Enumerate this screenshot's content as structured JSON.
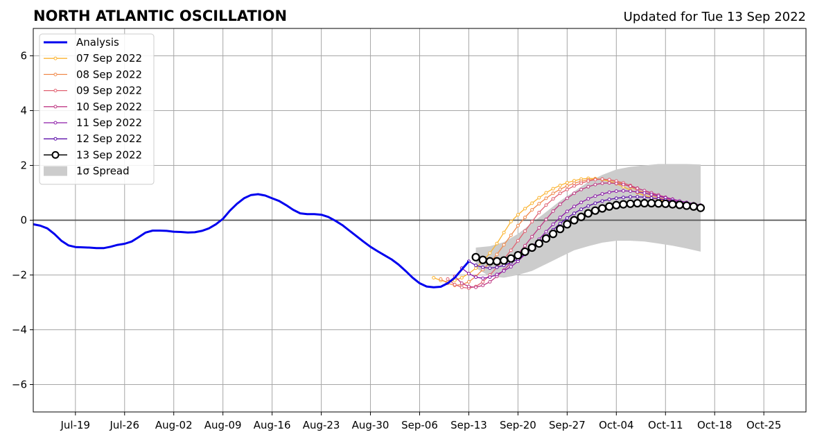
{
  "chart_data": {
    "type": "line",
    "title": "NORTH ATLANTIC OSCILLATION",
    "subtitle": "Updated for Tue 13 Sep 2022",
    "xlabel": "",
    "ylabel": "",
    "xlim": [
      "2022-07-13",
      "2022-10-31"
    ],
    "ylim": [
      -7,
      7
    ],
    "grid": true,
    "legend_position": "top-left",
    "x_ticks": [
      {
        "date": "2022-07-19",
        "label": "Jul-19"
      },
      {
        "date": "2022-07-26",
        "label": "Jul-26"
      },
      {
        "date": "2022-08-02",
        "label": "Aug-02"
      },
      {
        "date": "2022-08-09",
        "label": "Aug-09"
      },
      {
        "date": "2022-08-16",
        "label": "Aug-16"
      },
      {
        "date": "2022-08-23",
        "label": "Aug-23"
      },
      {
        "date": "2022-08-30",
        "label": "Aug-30"
      },
      {
        "date": "2022-09-06",
        "label": "Sep-06"
      },
      {
        "date": "2022-09-13",
        "label": "Sep-13"
      },
      {
        "date": "2022-09-20",
        "label": "Sep-20"
      },
      {
        "date": "2022-09-27",
        "label": "Sep-27"
      },
      {
        "date": "2022-10-04",
        "label": "Oct-04"
      },
      {
        "date": "2022-10-11",
        "label": "Oct-11"
      },
      {
        "date": "2022-10-18",
        "label": "Oct-18"
      },
      {
        "date": "2022-10-25",
        "label": "Oct-25"
      }
    ],
    "y_ticks": [
      {
        "value": 6,
        "label": "6"
      },
      {
        "value": 4,
        "label": "4"
      },
      {
        "value": 2,
        "label": "2"
      },
      {
        "value": 0,
        "label": "0"
      },
      {
        "value": -2,
        "label": "−2"
      },
      {
        "value": -4,
        "label": "−4"
      },
      {
        "value": -6,
        "label": "−6"
      }
    ],
    "spread": {
      "name": "1σ Spread",
      "color": "#cccccc",
      "x": [
        "2022-09-14",
        "2022-09-16",
        "2022-09-18",
        "2022-09-20",
        "2022-09-22",
        "2022-09-24",
        "2022-09-26",
        "2022-09-28",
        "2022-09-30",
        "2022-10-02",
        "2022-10-04",
        "2022-10-06",
        "2022-10-08",
        "2022-10-10",
        "2022-10-12",
        "2022-10-14",
        "2022-10-16"
      ],
      "upper": [
        -1.0,
        -0.95,
        -0.8,
        -0.5,
        -0.1,
        0.3,
        0.7,
        1.05,
        1.4,
        1.65,
        1.85,
        1.95,
        2.0,
        2.05,
        2.05,
        2.05,
        2.03
      ],
      "lower": [
        -1.75,
        -2.05,
        -2.1,
        -2.0,
        -1.85,
        -1.6,
        -1.35,
        -1.1,
        -0.95,
        -0.82,
        -0.75,
        -0.75,
        -0.78,
        -0.85,
        -0.93,
        -1.03,
        -1.15
      ]
    },
    "series": [
      {
        "name": "Analysis",
        "color": "#0000ee",
        "style": "thick",
        "x": [
          "2022-07-13",
          "2022-07-14",
          "2022-07-15",
          "2022-07-16",
          "2022-07-17",
          "2022-07-18",
          "2022-07-19",
          "2022-07-20",
          "2022-07-21",
          "2022-07-22",
          "2022-07-23",
          "2022-07-24",
          "2022-07-25",
          "2022-07-26",
          "2022-07-27",
          "2022-07-28",
          "2022-07-29",
          "2022-07-30",
          "2022-07-31",
          "2022-08-01",
          "2022-08-02",
          "2022-08-03",
          "2022-08-04",
          "2022-08-05",
          "2022-08-06",
          "2022-08-07",
          "2022-08-08",
          "2022-08-09",
          "2022-08-10",
          "2022-08-11",
          "2022-08-12",
          "2022-08-13",
          "2022-08-14",
          "2022-08-15",
          "2022-08-16",
          "2022-08-17",
          "2022-08-18",
          "2022-08-19",
          "2022-08-20",
          "2022-08-21",
          "2022-08-22",
          "2022-08-23",
          "2022-08-24",
          "2022-08-25",
          "2022-08-26",
          "2022-08-27",
          "2022-08-28",
          "2022-08-29",
          "2022-08-30",
          "2022-08-31",
          "2022-09-01",
          "2022-09-02",
          "2022-09-03",
          "2022-09-04",
          "2022-09-05",
          "2022-09-06",
          "2022-09-07",
          "2022-09-08",
          "2022-09-09",
          "2022-09-10",
          "2022-09-11",
          "2022-09-12",
          "2022-09-13"
        ],
        "values": [
          -0.15,
          -0.2,
          -0.3,
          -0.5,
          -0.75,
          -0.92,
          -0.98,
          -0.99,
          -1.0,
          -1.02,
          -1.02,
          -0.97,
          -0.9,
          -0.86,
          -0.78,
          -0.62,
          -0.45,
          -0.38,
          -0.38,
          -0.39,
          -0.42,
          -0.43,
          -0.45,
          -0.44,
          -0.39,
          -0.3,
          -0.15,
          0.05,
          0.35,
          0.6,
          0.8,
          0.92,
          0.95,
          0.9,
          0.8,
          0.7,
          0.55,
          0.38,
          0.25,
          0.22,
          0.22,
          0.2,
          0.12,
          -0.02,
          -0.18,
          -0.38,
          -0.58,
          -0.78,
          -0.97,
          -1.13,
          -1.28,
          -1.43,
          -1.62,
          -1.85,
          -2.1,
          -2.3,
          -2.42,
          -2.45,
          -2.43,
          -2.3,
          -2.1,
          -1.8,
          -1.5
        ]
      },
      {
        "name": "07 Sep 2022",
        "color": "#fbb32f",
        "style": "thin",
        "x": [
          "2022-09-08",
          "2022-09-09",
          "2022-09-10",
          "2022-09-11",
          "2022-09-12",
          "2022-09-13",
          "2022-09-14",
          "2022-09-15",
          "2022-09-16",
          "2022-09-17",
          "2022-09-18",
          "2022-09-19",
          "2022-09-20",
          "2022-09-21",
          "2022-09-22",
          "2022-09-23",
          "2022-09-24",
          "2022-09-25",
          "2022-09-26",
          "2022-09-27",
          "2022-09-28",
          "2022-09-29",
          "2022-09-30",
          "2022-10-01",
          "2022-10-02",
          "2022-10-03",
          "2022-10-04",
          "2022-10-05",
          "2022-10-06",
          "2022-10-07",
          "2022-10-08",
          "2022-10-09",
          "2022-10-10",
          "2022-10-11",
          "2022-10-12"
        ],
        "values": [
          -2.1,
          -2.2,
          -2.25,
          -2.2,
          -2.1,
          -1.95,
          -1.75,
          -1.5,
          -1.2,
          -0.85,
          -0.45,
          -0.05,
          0.2,
          0.42,
          0.62,
          0.82,
          1.0,
          1.15,
          1.27,
          1.37,
          1.44,
          1.5,
          1.53,
          1.52,
          1.48,
          1.42,
          1.33,
          1.22,
          1.1,
          1.0,
          0.9,
          0.82,
          0.75,
          0.7,
          0.65
        ]
      },
      {
        "name": "08 Sep 2022",
        "color": "#f08a4b",
        "style": "thin",
        "x": [
          "2022-09-09",
          "2022-09-10",
          "2022-09-11",
          "2022-09-12",
          "2022-09-13",
          "2022-09-14",
          "2022-09-15",
          "2022-09-16",
          "2022-09-17",
          "2022-09-18",
          "2022-09-19",
          "2022-09-20",
          "2022-09-21",
          "2022-09-22",
          "2022-09-23",
          "2022-09-24",
          "2022-09-25",
          "2022-09-26",
          "2022-09-27",
          "2022-09-28",
          "2022-09-29",
          "2022-09-30",
          "2022-10-01",
          "2022-10-02",
          "2022-10-03",
          "2022-10-04",
          "2022-10-05",
          "2022-10-06",
          "2022-10-07",
          "2022-10-08",
          "2022-10-09",
          "2022-10-10",
          "2022-10-11",
          "2022-10-12",
          "2022-10-13"
        ],
        "values": [
          -2.15,
          -2.3,
          -2.38,
          -2.35,
          -2.25,
          -2.05,
          -1.8,
          -1.55,
          -1.25,
          -0.9,
          -0.55,
          -0.2,
          0.1,
          0.38,
          0.6,
          0.8,
          0.98,
          1.13,
          1.25,
          1.35,
          1.42,
          1.47,
          1.5,
          1.5,
          1.47,
          1.4,
          1.32,
          1.22,
          1.1,
          1.0,
          0.9,
          0.82,
          0.75,
          0.68,
          0.62
        ]
      },
      {
        "name": "09 Sep 2022",
        "color": "#e06070",
        "style": "thin",
        "x": [
          "2022-09-10",
          "2022-09-11",
          "2022-09-12",
          "2022-09-13",
          "2022-09-14",
          "2022-09-15",
          "2022-09-16",
          "2022-09-17",
          "2022-09-18",
          "2022-09-19",
          "2022-09-20",
          "2022-09-21",
          "2022-09-22",
          "2022-09-23",
          "2022-09-24",
          "2022-09-25",
          "2022-09-26",
          "2022-09-27",
          "2022-09-28",
          "2022-09-29",
          "2022-09-30",
          "2022-10-01",
          "2022-10-02",
          "2022-10-03",
          "2022-10-04",
          "2022-10-05",
          "2022-10-06",
          "2022-10-07",
          "2022-10-08",
          "2022-10-09",
          "2022-10-10",
          "2022-10-11",
          "2022-10-12",
          "2022-10-13",
          "2022-10-14"
        ],
        "values": [
          -2.15,
          -2.35,
          -2.45,
          -2.48,
          -2.42,
          -2.25,
          -2.0,
          -1.72,
          -1.42,
          -1.1,
          -0.75,
          -0.4,
          -0.05,
          0.28,
          0.55,
          0.78,
          0.98,
          1.12,
          1.25,
          1.35,
          1.43,
          1.48,
          1.5,
          1.48,
          1.43,
          1.36,
          1.27,
          1.17,
          1.07,
          0.97,
          0.88,
          0.8,
          0.72,
          0.66,
          0.6
        ]
      },
      {
        "name": "10 Sep 2022",
        "color": "#bf3a84",
        "style": "thin",
        "x": [
          "2022-09-11",
          "2022-09-12",
          "2022-09-13",
          "2022-09-14",
          "2022-09-15",
          "2022-09-16",
          "2022-09-17",
          "2022-09-18",
          "2022-09-19",
          "2022-09-20",
          "2022-09-21",
          "2022-09-22",
          "2022-09-23",
          "2022-09-24",
          "2022-09-25",
          "2022-09-26",
          "2022-09-27",
          "2022-09-28",
          "2022-09-29",
          "2022-09-30",
          "2022-10-01",
          "2022-10-02",
          "2022-10-03",
          "2022-10-04",
          "2022-10-05",
          "2022-10-06",
          "2022-10-07",
          "2022-10-08",
          "2022-10-09",
          "2022-10-10",
          "2022-10-11",
          "2022-10-12",
          "2022-10-13",
          "2022-10-14",
          "2022-10-15"
        ],
        "values": [
          -2.05,
          -2.3,
          -2.42,
          -2.45,
          -2.38,
          -2.25,
          -2.05,
          -1.82,
          -1.55,
          -1.25,
          -0.93,
          -0.6,
          -0.28,
          0.03,
          0.33,
          0.58,
          0.8,
          0.98,
          1.12,
          1.22,
          1.3,
          1.35,
          1.36,
          1.34,
          1.3,
          1.24,
          1.16,
          1.08,
          1.0,
          0.92,
          0.84,
          0.77,
          0.7,
          0.64,
          0.58
        ]
      },
      {
        "name": "11 Sep 2022",
        "color": "#8c1aa8",
        "style": "thin",
        "x": [
          "2022-09-12",
          "2022-09-13",
          "2022-09-14",
          "2022-09-15",
          "2022-09-16",
          "2022-09-17",
          "2022-09-18",
          "2022-09-19",
          "2022-09-20",
          "2022-09-21",
          "2022-09-22",
          "2022-09-23",
          "2022-09-24",
          "2022-09-25",
          "2022-09-26",
          "2022-09-27",
          "2022-09-28",
          "2022-09-29",
          "2022-09-30",
          "2022-10-01",
          "2022-10-02",
          "2022-10-03",
          "2022-10-04",
          "2022-10-05",
          "2022-10-06",
          "2022-10-07",
          "2022-10-08",
          "2022-10-09",
          "2022-10-10",
          "2022-10-11",
          "2022-10-12",
          "2022-10-13",
          "2022-10-14",
          "2022-10-15",
          "2022-10-16"
        ],
        "values": [
          -1.75,
          -1.95,
          -2.08,
          -2.12,
          -2.08,
          -1.98,
          -1.85,
          -1.7,
          -1.5,
          -1.25,
          -0.98,
          -0.7,
          -0.42,
          -0.15,
          0.1,
          0.32,
          0.5,
          0.65,
          0.78,
          0.88,
          0.96,
          1.02,
          1.06,
          1.07,
          1.06,
          1.03,
          0.99,
          0.94,
          0.88,
          0.82,
          0.76,
          0.7,
          0.65,
          0.6,
          0.55
        ]
      },
      {
        "name": "12 Sep 2022",
        "color": "#5b0ca8",
        "style": "thin",
        "x": [
          "2022-09-13",
          "2022-09-14",
          "2022-09-15",
          "2022-09-16",
          "2022-09-17",
          "2022-09-18",
          "2022-09-19",
          "2022-09-20",
          "2022-09-21",
          "2022-09-22",
          "2022-09-23",
          "2022-09-24",
          "2022-09-25",
          "2022-09-26",
          "2022-09-27",
          "2022-09-28",
          "2022-09-29",
          "2022-09-30",
          "2022-10-01",
          "2022-10-02",
          "2022-10-03",
          "2022-10-04",
          "2022-10-05",
          "2022-10-06",
          "2022-10-07",
          "2022-10-08",
          "2022-10-09",
          "2022-10-10",
          "2022-10-11",
          "2022-10-12",
          "2022-10-13",
          "2022-10-14",
          "2022-10-15",
          "2022-10-16"
        ],
        "values": [
          -1.5,
          -1.65,
          -1.72,
          -1.75,
          -1.72,
          -1.65,
          -1.55,
          -1.42,
          -1.25,
          -1.05,
          -0.82,
          -0.58,
          -0.35,
          -0.12,
          0.08,
          0.25,
          0.4,
          0.52,
          0.62,
          0.7,
          0.76,
          0.8,
          0.83,
          0.85,
          0.85,
          0.84,
          0.81,
          0.78,
          0.74,
          0.7,
          0.65,
          0.6,
          0.55,
          0.5
        ]
      },
      {
        "name": "13 Sep 2022",
        "color": "#000000",
        "style": "markers",
        "x": [
          "2022-09-14",
          "2022-09-15",
          "2022-09-16",
          "2022-09-17",
          "2022-09-18",
          "2022-09-19",
          "2022-09-20",
          "2022-09-21",
          "2022-09-22",
          "2022-09-23",
          "2022-09-24",
          "2022-09-25",
          "2022-09-26",
          "2022-09-27",
          "2022-09-28",
          "2022-09-29",
          "2022-09-30",
          "2022-10-01",
          "2022-10-02",
          "2022-10-03",
          "2022-10-04",
          "2022-10-05",
          "2022-10-06",
          "2022-10-07",
          "2022-10-08",
          "2022-10-09",
          "2022-10-10",
          "2022-10-11",
          "2022-10-12",
          "2022-10-13",
          "2022-10-14",
          "2022-10-15",
          "2022-10-16"
        ],
        "values": [
          -1.35,
          -1.45,
          -1.5,
          -1.5,
          -1.47,
          -1.4,
          -1.28,
          -1.15,
          -1.0,
          -0.85,
          -0.67,
          -0.5,
          -0.32,
          -0.15,
          0.0,
          0.12,
          0.25,
          0.35,
          0.43,
          0.5,
          0.55,
          0.58,
          0.6,
          0.62,
          0.62,
          0.62,
          0.61,
          0.6,
          0.58,
          0.56,
          0.53,
          0.5,
          0.45
        ]
      }
    ]
  }
}
